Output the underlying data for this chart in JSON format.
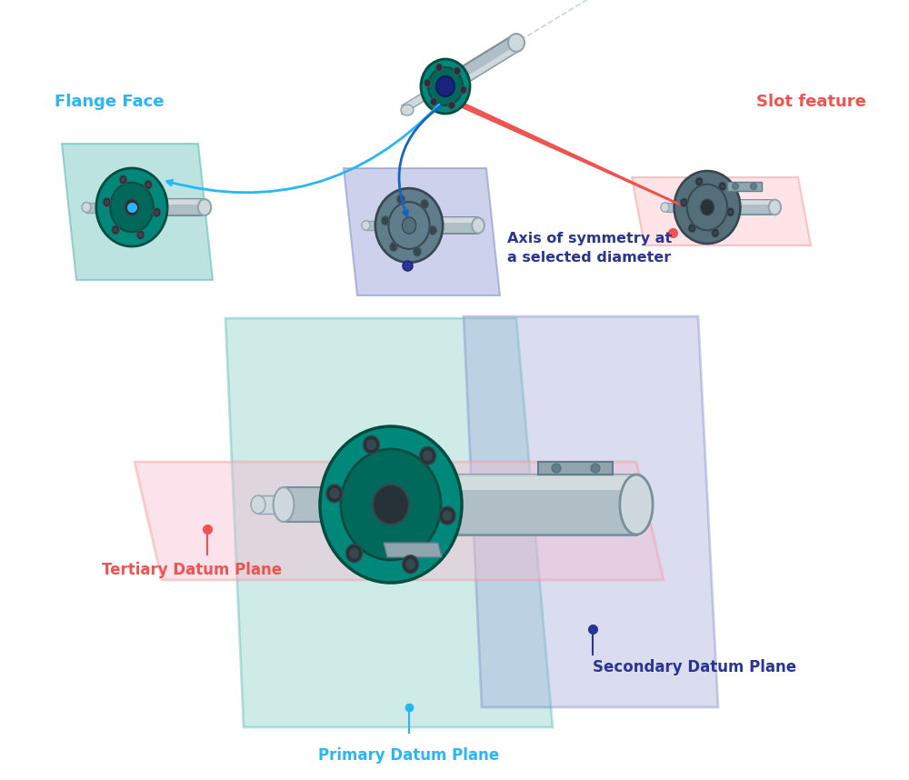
{
  "background_color": "#ffffff",
  "labels": {
    "flange_face": "Flange Face",
    "slot_feature": "Slot feature",
    "axis_symmetry": "Axis of symmetry at\na selected diameter",
    "primary": "Primary Datum Plane",
    "secondary": "Secondary Datum Plane",
    "tertiary": "Tertiary Datum Plane"
  },
  "colors": {
    "cyan_label": "#29B6F6",
    "red_label": "#EF5350",
    "blue_label": "#283593",
    "teal_plane": "#80CBC4",
    "purple_plane": "#9FA8DA",
    "red_plane": "#FFCDD2",
    "flange_teal": "#00897B",
    "flange_teal2": "#00695C",
    "flange_dark": "#004D40",
    "cyl_gray": "#B0BEC5",
    "cyl_light": "#ECEFF1",
    "cyl_mid": "#CFD8DC",
    "dark_gray": "#546E7A",
    "very_dark": "#263238",
    "arrow_cyan": "#29B6F6",
    "arrow_red": "#EF5350",
    "arrow_blue": "#1565C0",
    "dark_blue": "#283593",
    "slot_gray": "#90A4AE"
  },
  "figsize": [
    10.0,
    8.58
  ],
  "dpi": 100
}
